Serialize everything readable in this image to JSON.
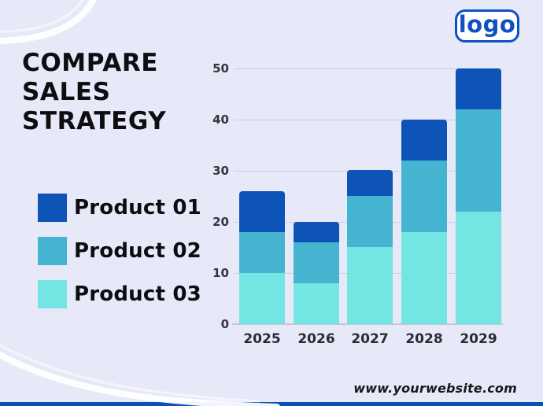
{
  "page": {
    "background_color": "#e7e9f8",
    "bottom_bar_color": "#0a51b6",
    "website": "www.yourwebsite.com"
  },
  "logo": {
    "text": "logo",
    "color": "#1150c0"
  },
  "header": {
    "title_lines": [
      "COMPARE",
      "SALES",
      "STRATEGY"
    ],
    "color": "#0d0d12"
  },
  "legend": {
    "items": [
      {
        "label": "Product 01",
        "color": "#0e53b6"
      },
      {
        "label": "Product 02",
        "color": "#45b4d1"
      },
      {
        "label": "Product 03",
        "color": "#73e5e2"
      }
    ]
  },
  "chart_data": {
    "type": "bar",
    "variant": "stacked-vertical",
    "title": "",
    "xlabel": "",
    "ylabel": "",
    "categories": [
      "2025",
      "2026",
      "2027",
      "2028",
      "2029"
    ],
    "series": [
      {
        "name": "Product 01",
        "color": "#0e53b6",
        "values": [
          8,
          4,
          5,
          8,
          8
        ]
      },
      {
        "name": "Product 02",
        "color": "#45b4d1",
        "values": [
          8,
          8,
          10,
          14,
          20
        ]
      },
      {
        "name": "Product 03",
        "color": "#73e5e2",
        "values": [
          10,
          8,
          15,
          18,
          22
        ]
      }
    ],
    "stack_order": "first series on top, last series at bottom",
    "totals": [
      26,
      20,
      30,
      40,
      50
    ],
    "yticks": [
      0,
      10,
      20,
      30,
      40,
      50
    ],
    "ylim": [
      0,
      50
    ],
    "grid": true,
    "gridline_color": "#ccceda",
    "legend_position": "left"
  }
}
